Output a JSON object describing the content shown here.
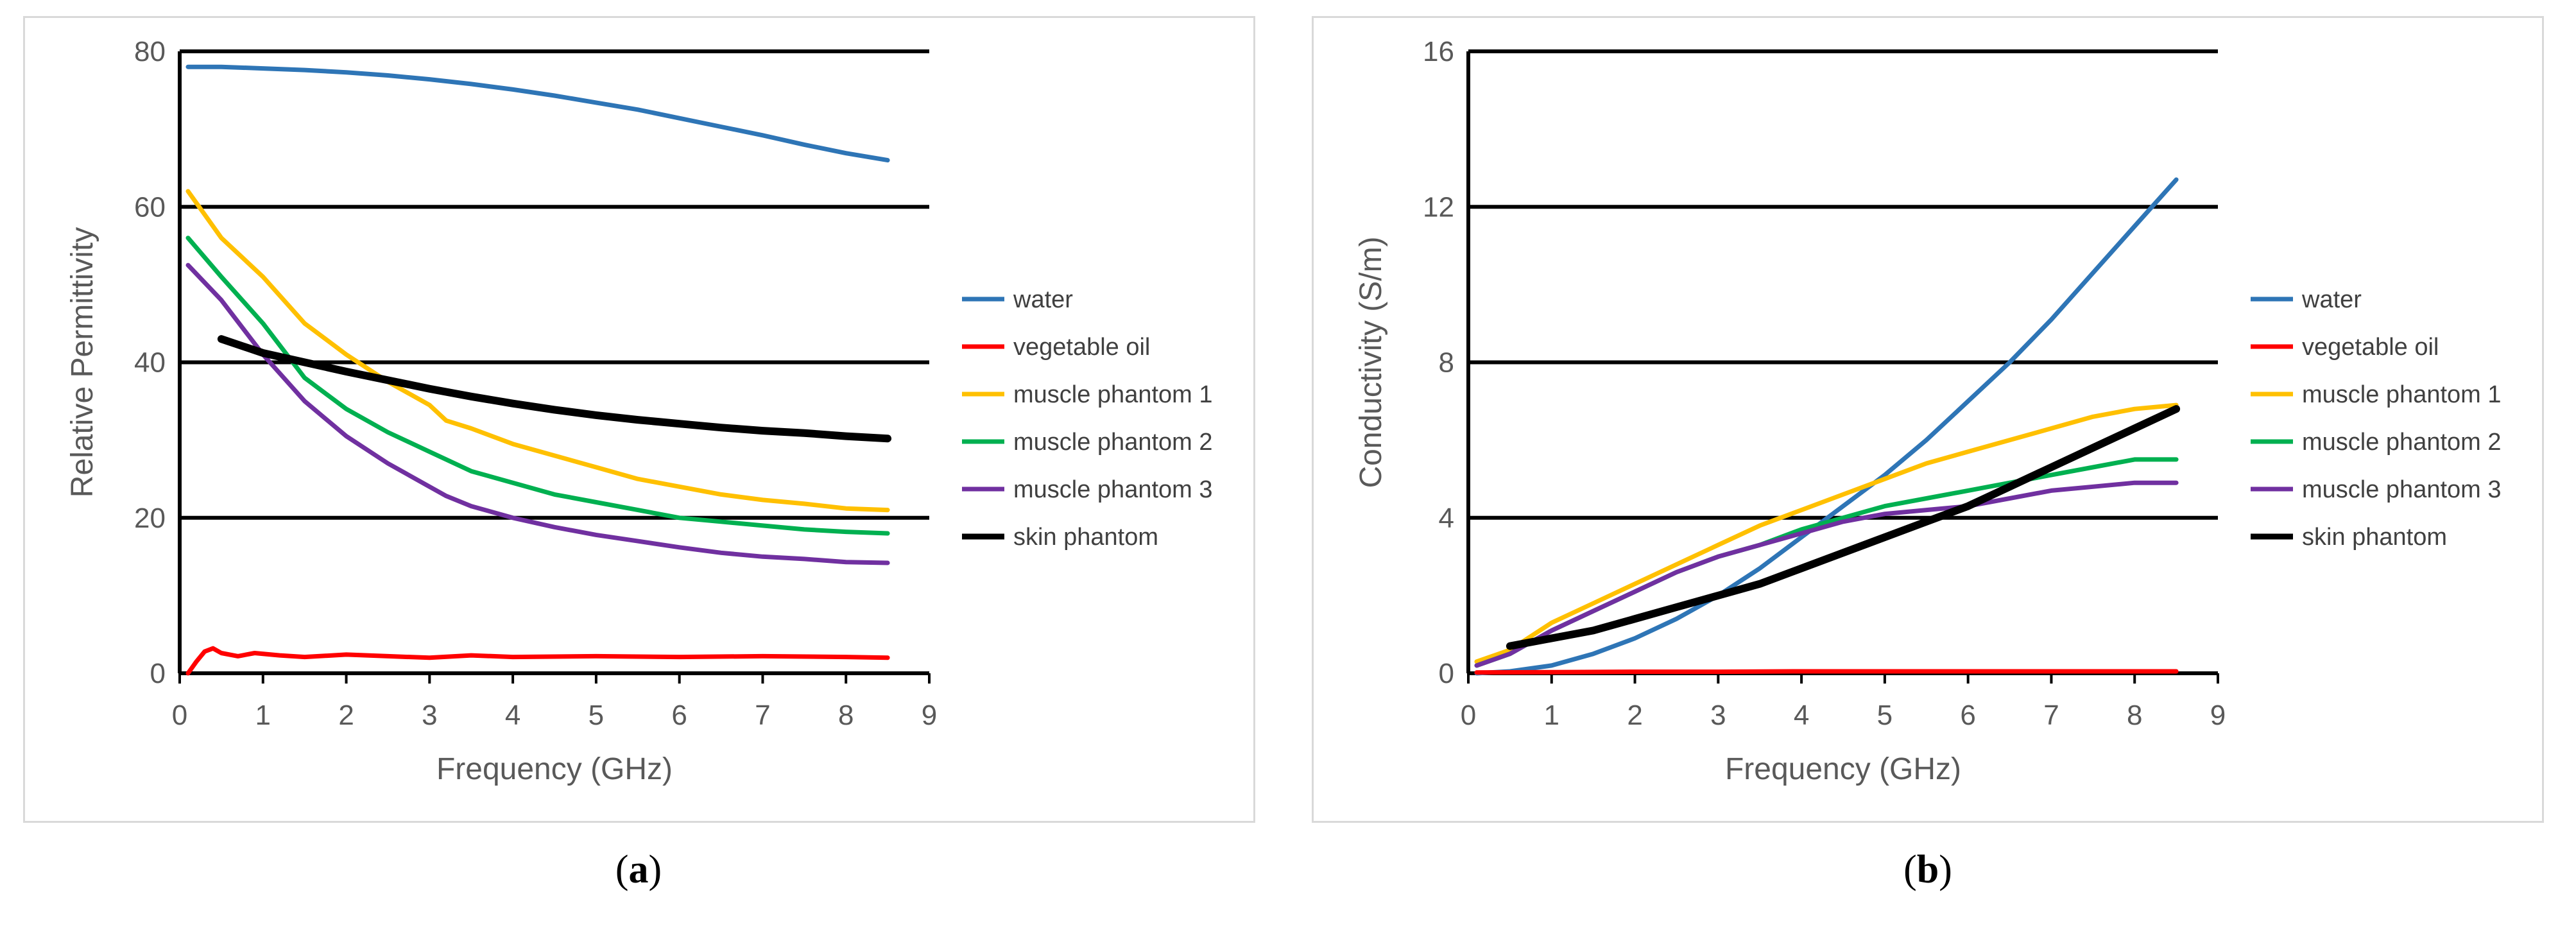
{
  "captions": {
    "a_open": "(",
    "a_letter": "a",
    "a_close": ")",
    "b_open": "(",
    "b_letter": "b",
    "b_close": ")"
  },
  "chart_data": [
    {
      "id": "a",
      "type": "line",
      "xlabel": "Frequency (GHz)",
      "ylabel": "Relative Permittivity",
      "xlim": [
        0,
        9
      ],
      "ylim": [
        0,
        80
      ],
      "xticks": [
        0,
        1,
        2,
        3,
        4,
        5,
        6,
        7,
        8,
        9
      ],
      "yticks": [
        0,
        20,
        40,
        60,
        80
      ],
      "legend_position": "right",
      "series": [
        {
          "name": "water",
          "color": "#2e75b6",
          "x": [
            0.1,
            0.5,
            1,
            1.5,
            2,
            2.5,
            3,
            3.5,
            4,
            4.5,
            5,
            5.5,
            6,
            6.5,
            7,
            7.5,
            8,
            8.5
          ],
          "y": [
            78.0,
            78.0,
            77.8,
            77.6,
            77.3,
            76.9,
            76.4,
            75.8,
            75.1,
            74.3,
            73.4,
            72.5,
            71.4,
            70.3,
            69.2,
            68.0,
            66.9,
            66.0
          ]
        },
        {
          "name": "vegetable oil",
          "color": "#ff0000",
          "x": [
            0.1,
            0.2,
            0.3,
            0.4,
            0.5,
            0.7,
            0.9,
            1.2,
            1.5,
            2,
            2.5,
            3,
            3.5,
            4,
            5,
            6,
            7,
            8,
            8.5
          ],
          "y": [
            0.0,
            1.5,
            2.8,
            3.2,
            2.6,
            2.2,
            2.6,
            2.3,
            2.1,
            2.4,
            2.2,
            2.0,
            2.3,
            2.1,
            2.2,
            2.1,
            2.2,
            2.1,
            2.0
          ]
        },
        {
          "name": "muscle phantom 1",
          "color": "#ffc000",
          "x": [
            0.1,
            0.5,
            1,
            1.5,
            2,
            2.5,
            3,
            3.2,
            3.5,
            4,
            4.5,
            5,
            5.5,
            6,
            6.5,
            7,
            7.5,
            8,
            8.5
          ],
          "y": [
            62,
            56,
            51,
            45,
            41,
            37.5,
            34.5,
            32.5,
            31.5,
            29.5,
            28,
            26.5,
            25,
            24,
            23,
            22.3,
            21.8,
            21.2,
            21.0
          ]
        },
        {
          "name": "muscle phantom 2",
          "color": "#00b050",
          "x": [
            0.1,
            0.5,
            1,
            1.5,
            2,
            2.5,
            3,
            3.2,
            3.5,
            4,
            4.5,
            5,
            5.5,
            6,
            6.5,
            7,
            7.5,
            8,
            8.5
          ],
          "y": [
            56,
            51,
            45,
            38,
            34,
            31,
            28.5,
            27.5,
            26,
            24.5,
            23,
            22,
            21,
            20,
            19.5,
            19,
            18.5,
            18.2,
            18.0
          ]
        },
        {
          "name": "muscle phantom 3",
          "color": "#7030a0",
          "x": [
            0.1,
            0.5,
            1,
            1.5,
            2,
            2.5,
            3,
            3.2,
            3.5,
            4,
            4.5,
            5,
            5.5,
            6,
            6.5,
            7,
            7.5,
            8,
            8.5
          ],
          "y": [
            52.5,
            48,
            41,
            35,
            30.5,
            27,
            24,
            22.8,
            21.5,
            20,
            18.8,
            17.8,
            17,
            16.2,
            15.5,
            15,
            14.7,
            14.3,
            14.2
          ]
        },
        {
          "name": "skin phantom",
          "color": "#000000",
          "x": [
            0.5,
            1,
            1.5,
            2,
            2.5,
            3,
            3.5,
            4,
            4.5,
            5,
            5.5,
            6,
            6.5,
            7,
            7.5,
            8,
            8.5
          ],
          "y": [
            43,
            41.2,
            40,
            38.8,
            37.7,
            36.6,
            35.6,
            34.7,
            33.9,
            33.2,
            32.6,
            32.1,
            31.6,
            31.2,
            30.9,
            30.5,
            30.2
          ]
        }
      ]
    },
    {
      "id": "b",
      "type": "line",
      "xlabel": "Frequency (GHz)",
      "ylabel": "Conductivity (S/m)",
      "xlim": [
        0,
        9
      ],
      "ylim": [
        0,
        16
      ],
      "xticks": [
        0,
        1,
        2,
        3,
        4,
        5,
        6,
        7,
        8,
        9
      ],
      "yticks": [
        0,
        4,
        8,
        12,
        16
      ],
      "legend_position": "right",
      "series": [
        {
          "name": "water",
          "color": "#2e75b6",
          "x": [
            0.1,
            0.5,
            1,
            1.5,
            2,
            2.5,
            3,
            3.5,
            4,
            4.5,
            5,
            5.5,
            6,
            6.5,
            7,
            7.5,
            8,
            8.5
          ],
          "y": [
            0.0,
            0.05,
            0.2,
            0.5,
            0.9,
            1.4,
            2.0,
            2.7,
            3.5,
            4.3,
            5.1,
            6.0,
            7.0,
            8.0,
            9.1,
            10.3,
            11.5,
            12.7
          ]
        },
        {
          "name": "vegetable oil",
          "color": "#ff0000",
          "x": [
            0.1,
            1,
            2,
            3,
            4,
            5,
            6,
            7,
            8,
            8.5
          ],
          "y": [
            0.02,
            0.03,
            0.04,
            0.04,
            0.05,
            0.05,
            0.05,
            0.05,
            0.05,
            0.05
          ]
        },
        {
          "name": "muscle phantom 1",
          "color": "#ffc000",
          "x": [
            0.1,
            0.5,
            1,
            1.5,
            2,
            2.5,
            3,
            3.5,
            4,
            4.5,
            5,
            5.5,
            6,
            6.5,
            7,
            7.5,
            8,
            8.5
          ],
          "y": [
            0.3,
            0.6,
            1.3,
            1.8,
            2.3,
            2.8,
            3.3,
            3.8,
            4.2,
            4.6,
            5.0,
            5.4,
            5.7,
            6.0,
            6.3,
            6.6,
            6.8,
            6.9
          ]
        },
        {
          "name": "muscle phantom 2",
          "color": "#00b050",
          "x": [
            0.1,
            0.5,
            1,
            1.5,
            2,
            2.5,
            3,
            3.5,
            4,
            4.5,
            5,
            5.5,
            6,
            6.5,
            7,
            7.5,
            8,
            8.5
          ],
          "y": [
            0.2,
            0.5,
            1.1,
            1.6,
            2.1,
            2.6,
            3.0,
            3.3,
            3.7,
            4.0,
            4.3,
            4.5,
            4.7,
            4.9,
            5.1,
            5.3,
            5.5,
            5.5
          ]
        },
        {
          "name": "muscle phantom 3",
          "color": "#7030a0",
          "x": [
            0.1,
            0.5,
            1,
            1.5,
            2,
            2.5,
            3,
            3.5,
            4,
            4.5,
            5,
            5.5,
            6,
            6.5,
            7,
            7.5,
            8,
            8.5
          ],
          "y": [
            0.2,
            0.5,
            1.1,
            1.6,
            2.1,
            2.6,
            3.0,
            3.3,
            3.6,
            3.9,
            4.1,
            4.2,
            4.3,
            4.5,
            4.7,
            4.8,
            4.9,
            4.9
          ]
        },
        {
          "name": "skin phantom",
          "color": "#000000",
          "x": [
            0.5,
            1,
            1.5,
            2,
            2.5,
            3,
            3.5,
            4,
            4.5,
            5,
            5.5,
            6,
            6.5,
            7,
            7.5,
            8,
            8.5
          ],
          "y": [
            0.7,
            0.9,
            1.1,
            1.4,
            1.7,
            2.0,
            2.3,
            2.7,
            3.1,
            3.5,
            3.9,
            4.3,
            4.8,
            5.3,
            5.8,
            6.3,
            6.8
          ]
        }
      ]
    }
  ]
}
